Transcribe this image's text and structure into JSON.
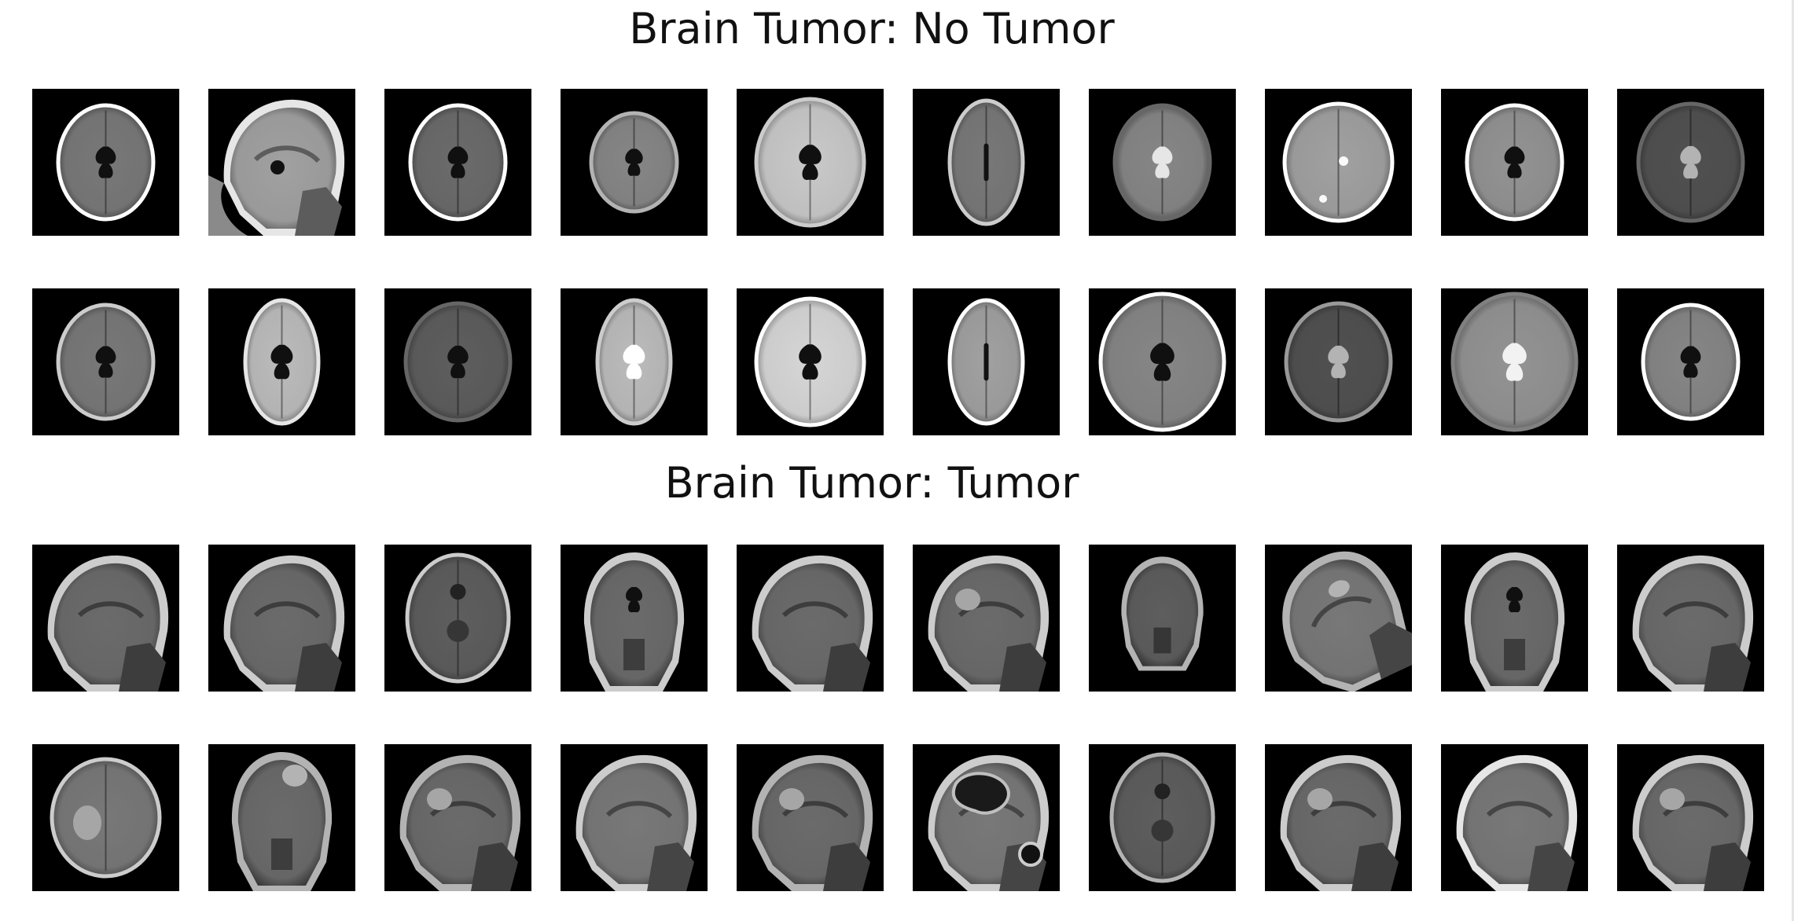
{
  "figure": {
    "sections": [
      {
        "title": "Brain Tumor: No Tumor",
        "rows": [
          [
            {
              "view": "axial",
              "brightness": 0.45,
              "ring": 0.9,
              "ventricle": "butterfly"
            },
            {
              "view": "sagittal-face",
              "brightness": 0.6,
              "ring": 0.8,
              "ventricle": "none"
            },
            {
              "view": "axial",
              "brightness": 0.4,
              "ring": 0.9,
              "ventricle": "butterfly"
            },
            {
              "view": "axial-small",
              "brightness": 0.5,
              "ring": 0.6,
              "ventricle": "butterfly-dark"
            },
            {
              "view": "axial-bright",
              "brightness": 0.75,
              "ring": 0.7,
              "ventricle": "butterfly"
            },
            {
              "view": "axial-narrow",
              "brightness": 0.45,
              "ring": 0.7,
              "ventricle": "slit"
            },
            {
              "view": "axial",
              "brightness": 0.5,
              "ring": 0.3,
              "ventricle": "butterfly-bright"
            },
            {
              "view": "axial-spots",
              "brightness": 0.6,
              "ring": 0.9,
              "ventricle": "none"
            },
            {
              "view": "axial",
              "brightness": 0.55,
              "ring": 0.9,
              "ventricle": "butterfly-dark"
            },
            {
              "view": "axial-dim",
              "brightness": 0.3,
              "ring": 0.3,
              "ventricle": "butterfly-bright"
            }
          ],
          [
            {
              "view": "axial",
              "brightness": 0.45,
              "ring": 0.7,
              "ventricle": "butterfly"
            },
            {
              "view": "axial-narrow",
              "brightness": 0.7,
              "ring": 0.8,
              "ventricle": "butterfly"
            },
            {
              "view": "axial-dim",
              "brightness": 0.35,
              "ring": 0.3,
              "ventricle": "butterfly"
            },
            {
              "view": "axial-narrow",
              "brightness": 0.7,
              "ring": 0.7,
              "ventricle": "butterfly-bright"
            },
            {
              "view": "axial-bright",
              "brightness": 0.8,
              "ring": 0.9,
              "ventricle": "butterfly-dark"
            },
            {
              "view": "axial-narrow",
              "brightness": 0.6,
              "ring": 0.9,
              "ventricle": "slit"
            },
            {
              "view": "axial-wide",
              "brightness": 0.5,
              "ring": 0.9,
              "ventricle": "butterfly-dark"
            },
            {
              "view": "axial-dim",
              "brightness": 0.3,
              "ring": 0.5,
              "ventricle": "butterfly-bright"
            },
            {
              "view": "axial-wide",
              "brightness": 0.55,
              "ring": 0.4,
              "ventricle": "butterfly-bright"
            },
            {
              "view": "axial",
              "brightness": 0.5,
              "ring": 0.9,
              "ventricle": "butterfly-dark"
            }
          ]
        ]
      },
      {
        "title": "Brain Tumor: Tumor",
        "rows": [
          [
            {
              "view": "sagittal",
              "brightness": 0.4,
              "ring": 0.7,
              "ventricle": "none"
            },
            {
              "view": "sagittal",
              "brightness": 0.4,
              "ring": 0.7,
              "ventricle": "none"
            },
            {
              "view": "axial-low",
              "brightness": 0.35,
              "ring": 0.7,
              "ventricle": "none"
            },
            {
              "view": "coronal",
              "brightness": 0.4,
              "ring": 0.7,
              "ventricle": "butterfly"
            },
            {
              "view": "sagittal",
              "brightness": 0.4,
              "ring": 0.7,
              "ventricle": "none"
            },
            {
              "view": "sagittal-lesion",
              "brightness": 0.4,
              "ring": 0.7,
              "ventricle": "none"
            },
            {
              "view": "coronal-small",
              "brightness": 0.35,
              "ring": 0.6,
              "ventricle": "none"
            },
            {
              "view": "tilted",
              "brightness": 0.45,
              "ring": 0.6,
              "ventricle": "none"
            },
            {
              "view": "coronal",
              "brightness": 0.4,
              "ring": 0.7,
              "ventricle": "butterfly"
            },
            {
              "view": "sagittal",
              "brightness": 0.4,
              "ring": 0.7,
              "ventricle": "none"
            }
          ],
          [
            {
              "view": "axial-lesion",
              "brightness": 0.45,
              "ring": 0.7,
              "ventricle": "none"
            },
            {
              "view": "coronal-lesion",
              "brightness": 0.4,
              "ring": 0.6,
              "ventricle": "none"
            },
            {
              "view": "sagittal-lesion",
              "brightness": 0.4,
              "ring": 0.6,
              "ventricle": "none"
            },
            {
              "view": "sagittal",
              "brightness": 0.45,
              "ring": 0.7,
              "ventricle": "none"
            },
            {
              "view": "sagittal-lesion",
              "brightness": 0.4,
              "ring": 0.6,
              "ventricle": "none"
            },
            {
              "view": "sagittal-big-lesion",
              "brightness": 0.45,
              "ring": 0.7,
              "ventricle": "none"
            },
            {
              "view": "axial-low",
              "brightness": 0.35,
              "ring": 0.6,
              "ventricle": "none"
            },
            {
              "view": "sagittal-lesion",
              "brightness": 0.4,
              "ring": 0.7,
              "ventricle": "none"
            },
            {
              "view": "sagittal",
              "brightness": 0.45,
              "ring": 0.8,
              "ventricle": "none"
            },
            {
              "view": "sagittal-lesion",
              "brightness": 0.4,
              "ring": 0.7,
              "ventricle": "none"
            }
          ]
        ]
      }
    ]
  }
}
